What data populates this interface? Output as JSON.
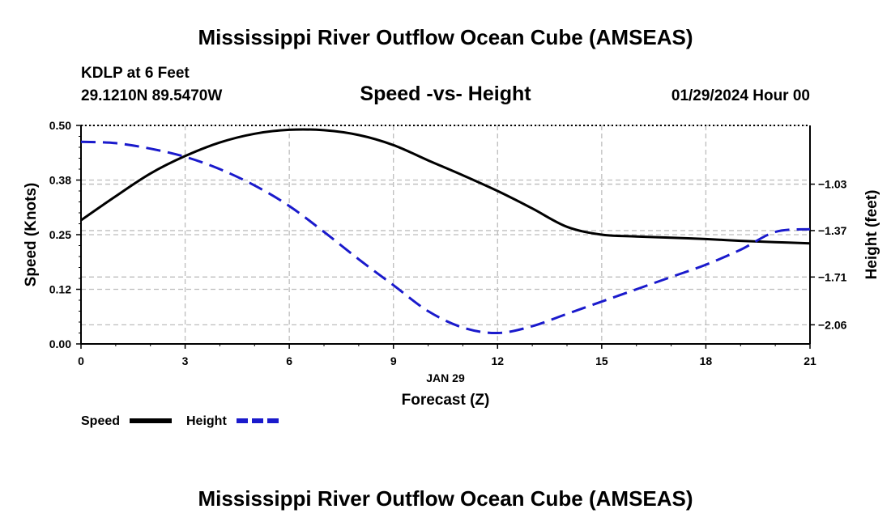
{
  "page": {
    "title": "Mississippi River Outflow Ocean Cube (AMSEAS)",
    "bottom_title": "Mississippi River Outflow Ocean Cube (AMSEAS)",
    "station": "KDLP at 6 Feet",
    "coords": "29.1210N  89.5470W",
    "date": "01/29/2024 Hour 00"
  },
  "chart_data": {
    "type": "line",
    "title": "Speed -vs- Height",
    "xlabel": "Forecast (Z)",
    "xsublabel": "JAN 29",
    "ylabel": "Speed (Knots)",
    "y2label": "Height (feet)",
    "xlim": [
      0,
      21
    ],
    "ylim": [
      0,
      0.5
    ],
    "y2lim": [
      -2.2,
      -0.6
    ],
    "grid": true,
    "xticks": [
      0,
      3,
      6,
      9,
      12,
      15,
      18,
      21
    ],
    "xtick_labels": [
      "0",
      "3",
      "6",
      "9",
      "12",
      "15",
      "18",
      "21"
    ],
    "yticks": [
      0,
      0.125,
      0.25,
      0.375,
      0.5
    ],
    "ytick_labels": [
      "0.00",
      "0.12",
      "0.25",
      "0.38",
      "0.50"
    ],
    "y2ticks": [
      -2.06,
      -1.71,
      -1.37,
      -1.03
    ],
    "y2tick_labels": [
      "−2.06",
      "−1.71",
      "−1.37",
      "−1.03"
    ],
    "series": [
      {
        "name": "Speed",
        "axis": "left",
        "color": "#000000",
        "dash": "solid",
        "x": [
          0,
          1,
          2,
          3,
          4,
          5,
          6,
          7,
          8,
          9,
          10,
          11,
          12,
          13,
          14,
          15,
          16,
          17,
          18,
          19,
          20,
          21
        ],
        "values": [
          0.283,
          0.338,
          0.39,
          0.43,
          0.461,
          0.481,
          0.49,
          0.489,
          0.478,
          0.455,
          0.42,
          0.386,
          0.35,
          0.31,
          0.268,
          0.25,
          0.246,
          0.243,
          0.24,
          0.236,
          0.233,
          0.23
        ]
      },
      {
        "name": "Height",
        "axis": "right",
        "color": "#1a1acc",
        "dash": "dashed",
        "x": [
          0,
          1,
          2,
          3,
          4,
          5,
          6,
          7,
          8,
          9,
          10,
          11,
          12,
          13,
          14,
          15,
          16,
          17,
          18,
          19,
          20,
          21
        ],
        "values": [
          -0.72,
          -0.73,
          -0.77,
          -0.83,
          -0.92,
          -1.04,
          -1.19,
          -1.38,
          -1.58,
          -1.77,
          -1.96,
          -2.08,
          -2.12,
          -2.07,
          -1.98,
          -1.89,
          -1.8,
          -1.71,
          -1.62,
          -1.51,
          -1.38,
          -1.36
        ]
      }
    ],
    "legend": {
      "position": "bottom-left"
    }
  }
}
